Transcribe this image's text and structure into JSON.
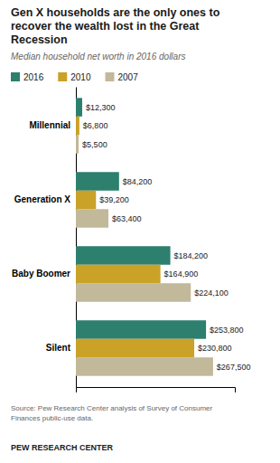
{
  "chart_data": {
    "type": "bar",
    "orientation": "horizontal",
    "title": "Gen X households are the only ones to\nrecover the wealth lost in the Great\nRecession",
    "subtitle": "Median household net worth in 2016 dollars",
    "categories": [
      "Millennial",
      "Generation X",
      "Baby Boomer",
      "Silent"
    ],
    "series": [
      {
        "name": "2016",
        "color": "#2d7f6e",
        "values": [
          12300,
          84200,
          184200,
          253800
        ],
        "value_labels": [
          "$12,300",
          "$84,200",
          "$184,200",
          "$253,800"
        ]
      },
      {
        "name": "2010",
        "color": "#c9a227",
        "values": [
          6800,
          39200,
          164900,
          230800
        ],
        "value_labels": [
          "$6,800",
          "$39,200",
          "$164,900",
          "$230,800"
        ]
      },
      {
        "name": "2007",
        "color": "#c2b89a",
        "values": [
          5500,
          63400,
          224100,
          267500
        ],
        "value_labels": [
          "$5,500",
          "$63,400",
          "$224,100",
          "$267,500"
        ]
      }
    ],
    "xlim": [
      0,
      310000
    ],
    "data_labels": true,
    "tick_labels": "y",
    "grid": false,
    "legend": "top left",
    "source": "Source: Pew Research Center analysis of Survey of Consumer\nFinances public-use data.",
    "footer": "PEW RESEARCH CENTER"
  }
}
